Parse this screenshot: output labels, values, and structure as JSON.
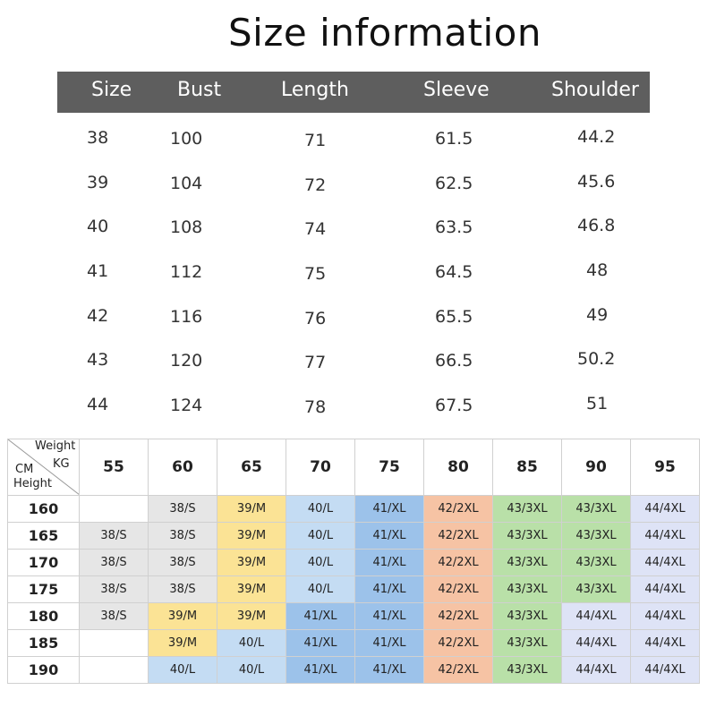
{
  "title": "Size information",
  "measure_table": {
    "headers": [
      "Size",
      "Bust",
      "Length",
      "Sleeve",
      "Shoulder"
    ],
    "rows": [
      [
        "38",
        "100",
        "71",
        "61.5",
        "44.2"
      ],
      [
        "39",
        "104",
        "72",
        "62.5",
        "45.6"
      ],
      [
        "40",
        "108",
        "74",
        "63.5",
        "46.8"
      ],
      [
        "41",
        "112",
        "75",
        "64.5",
        "48"
      ],
      [
        "42",
        "116",
        "76",
        "65.5",
        "49"
      ],
      [
        "43",
        "120",
        "77",
        "66.5",
        "50.2"
      ],
      [
        "44",
        "124",
        "78",
        "67.5",
        "51"
      ]
    ]
  },
  "size_chart": {
    "corner": {
      "weight": "Weight",
      "kg": "KG",
      "cm": "CM",
      "height": "Height"
    },
    "weights": [
      "55",
      "60",
      "65",
      "70",
      "75",
      "80",
      "85",
      "90",
      "95"
    ],
    "heights": [
      "160",
      "165",
      "170",
      "175",
      "180",
      "185",
      "190"
    ],
    "cells": [
      [
        "",
        "38/S",
        "39/M",
        "40/L",
        "41/XL",
        "42/2XL",
        "43/3XL",
        "43/3XL",
        "44/4XL"
      ],
      [
        "38/S",
        "38/S",
        "39/M",
        "40/L",
        "41/XL",
        "42/2XL",
        "43/3XL",
        "43/3XL",
        "44/4XL"
      ],
      [
        "38/S",
        "38/S",
        "39/M",
        "40/L",
        "41/XL",
        "42/2XL",
        "43/3XL",
        "43/3XL",
        "44/4XL"
      ],
      [
        "38/S",
        "38/S",
        "39/M",
        "40/L",
        "41/XL",
        "42/2XL",
        "43/3XL",
        "43/3XL",
        "44/4XL"
      ],
      [
        "38/S",
        "39/M",
        "39/M",
        "41/XL",
        "41/XL",
        "42/2XL",
        "43/3XL",
        "44/4XL",
        "44/4XL"
      ],
      [
        "",
        "39/M",
        "40/L",
        "41/XL",
        "41/XL",
        "42/2XL",
        "43/3XL",
        "44/4XL",
        "44/4XL"
      ],
      [
        "",
        "40/L",
        "40/L",
        "41/XL",
        "41/XL",
        "42/2XL",
        "43/3XL",
        "44/4XL",
        "44/4XL"
      ]
    ],
    "size_colors": {
      "38/S": "#e6e6e6",
      "39/M": "#fbe395",
      "40/L": "#c4dcf3",
      "41/XL": "#9cc2ea",
      "42/2XL": "#f6c3a4",
      "43/3XL": "#b9e0a8",
      "44/4XL": "#dee3f6"
    }
  },
  "colors": {
    "header_bar": "#5e5e5e",
    "header_text": "#ffffff",
    "border": "#d0d0d0"
  }
}
